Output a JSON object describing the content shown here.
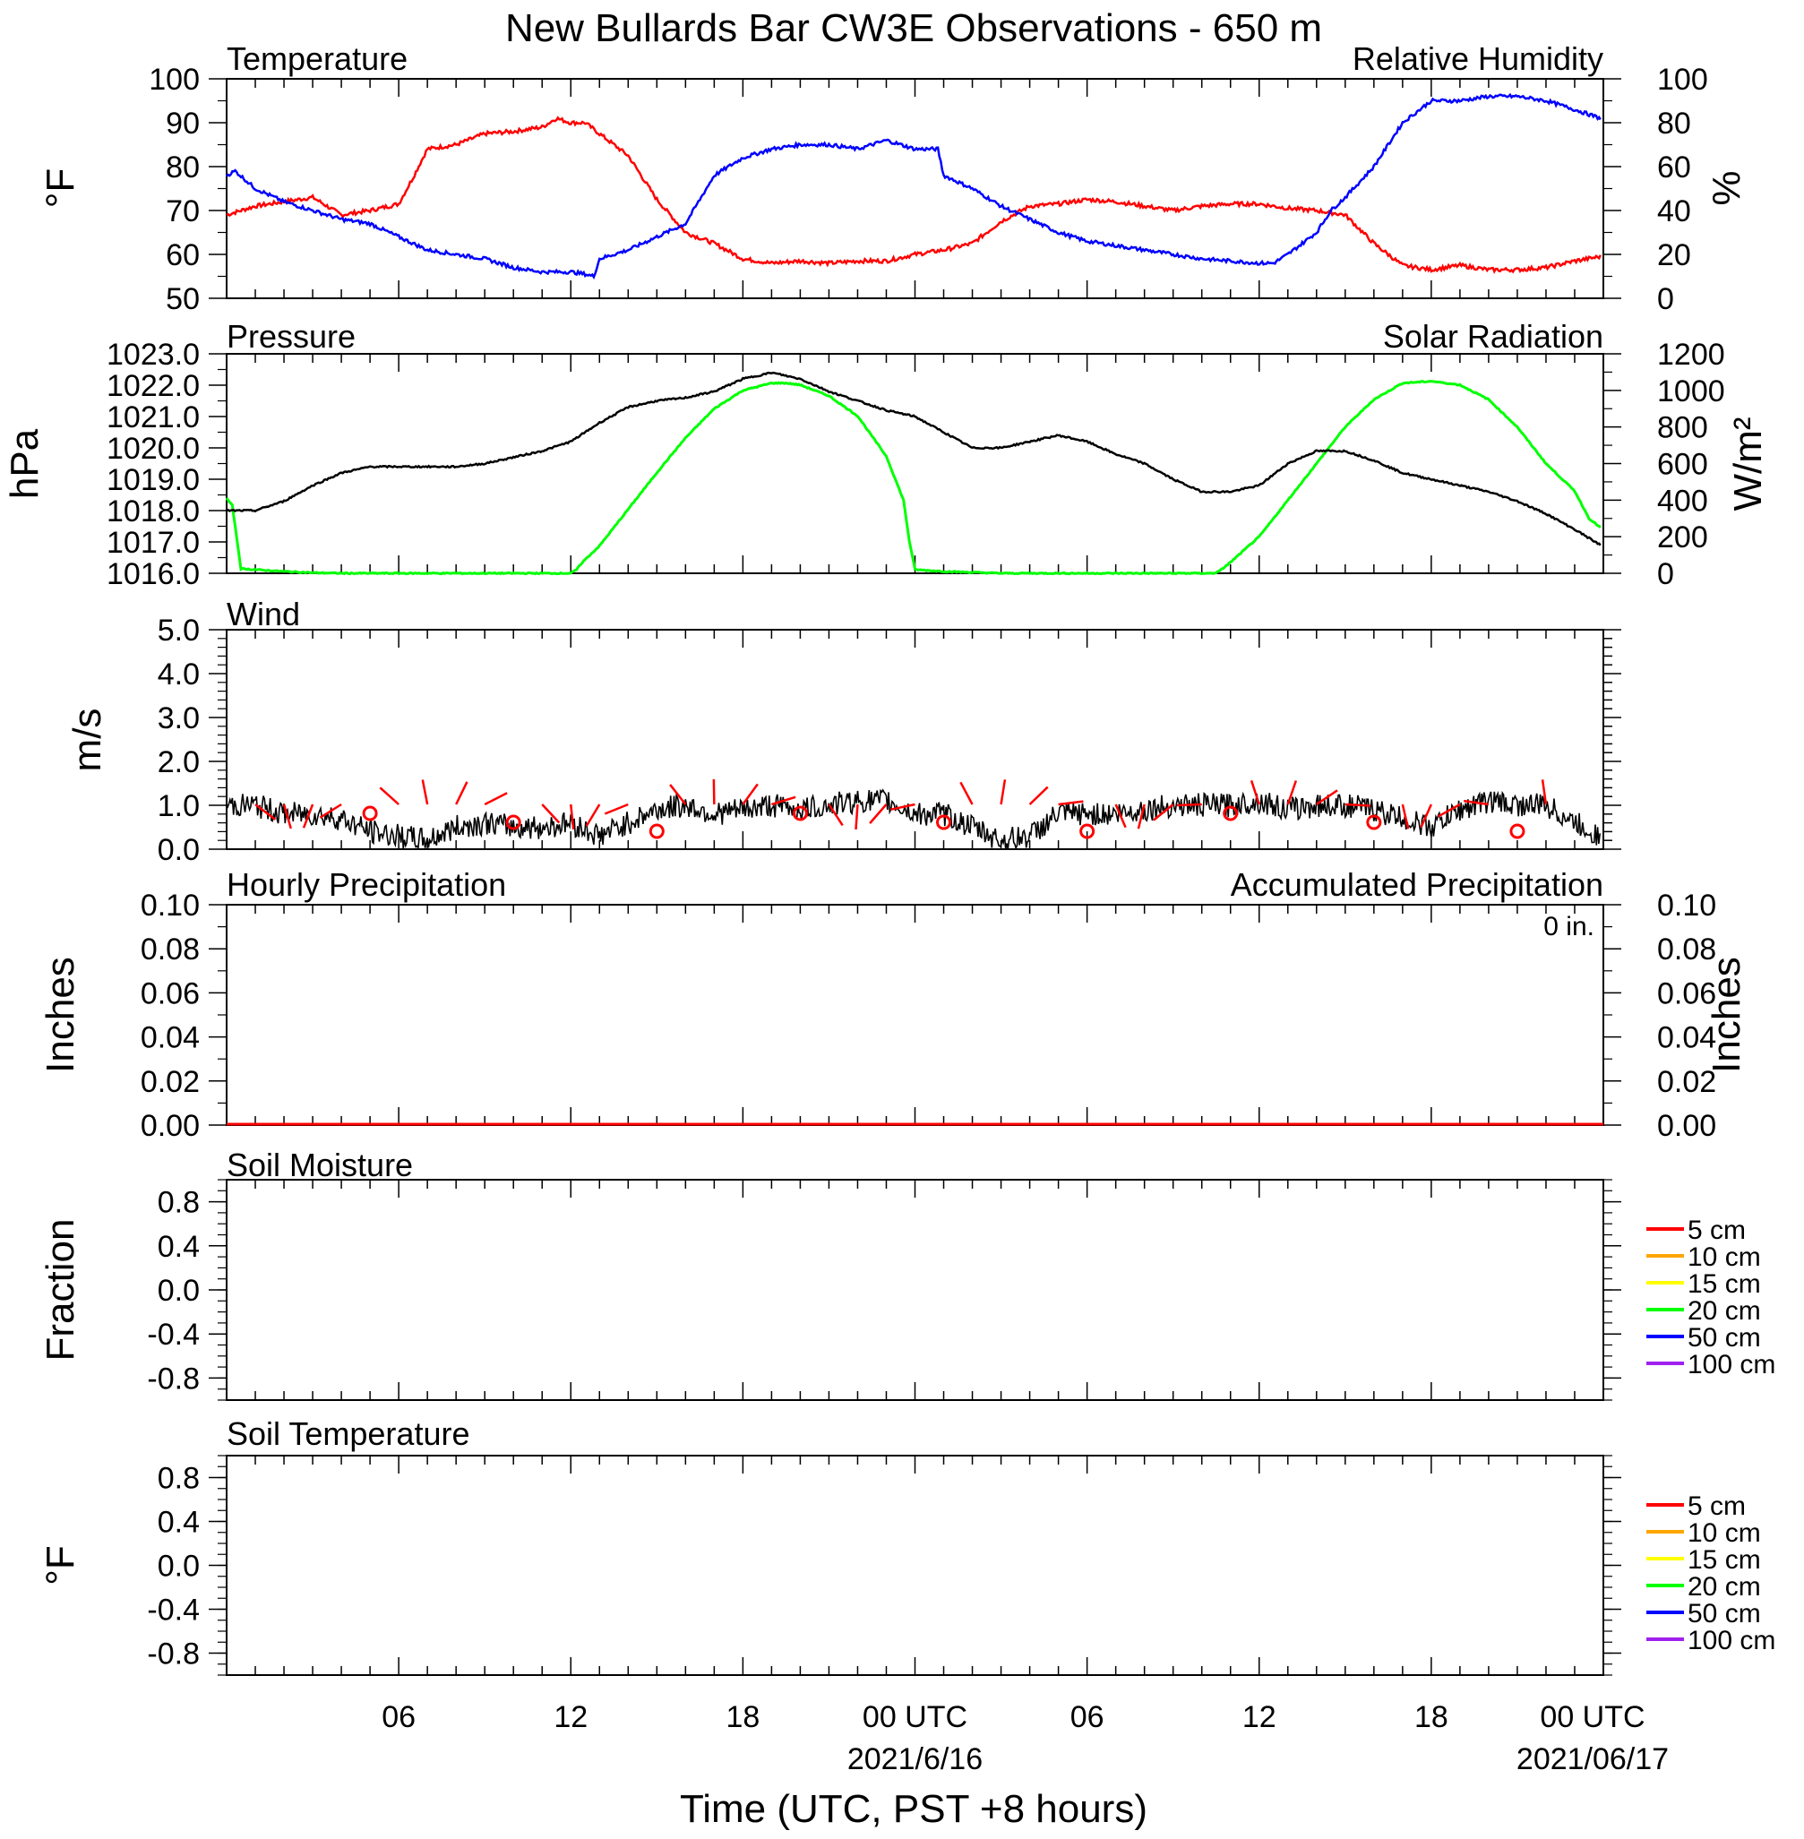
{
  "title": "New Bullards Bar CW3E Observations - 650 m",
  "x_axis": {
    "label": "Time (UTC, PST +8 hours)",
    "tick_labels": [
      "06",
      "12",
      "18",
      "00 UTC",
      "06",
      "12",
      "18",
      "00 UTC"
    ],
    "date_labels": [
      "2021/6/16",
      "2021/06/17"
    ],
    "range_hours": [
      0,
      48
    ]
  },
  "colors": {
    "temperature": "#0000ff",
    "humidity": "#ff0000",
    "pressure": "#000000",
    "solar": "#00ff00",
    "wind": "#000000",
    "wind_barb": "#ff0000",
    "hourly_precip": "#0000ff",
    "accum_precip": "#ff0000"
  },
  "panels": {
    "temp_rh": {
      "left_title": "Temperature",
      "right_title": "Relative Humidity",
      "left_unit": "°F",
      "right_unit": "%",
      "left_ticks": [
        "100",
        "90",
        "80",
        "70",
        "60",
        "50"
      ],
      "right_ticks": [
        "100",
        "80",
        "60",
        "40",
        "20",
        "0"
      ]
    },
    "pressure_solar": {
      "left_title": "Pressure",
      "right_title": "Solar Radiation",
      "left_unit": "hPa",
      "right_unit": "W/m²",
      "left_ticks": [
        "1023.0",
        "1022.0",
        "1021.0",
        "1020.0",
        "1019.0",
        "1018.0",
        "1017.0",
        "1016.0"
      ],
      "right_ticks": [
        "1200",
        "1000",
        "800",
        "600",
        "400",
        "200",
        "0"
      ]
    },
    "wind": {
      "title": "Wind",
      "unit": "m/s",
      "ticks": [
        "5.0",
        "4.0",
        "3.0",
        "2.0",
        "1.0",
        "0.0"
      ]
    },
    "precip": {
      "left_title": "Hourly Precipitation",
      "right_title": "Accumulated Precipitation",
      "accum_total": "0 in.",
      "left_unit": "Inches",
      "right_unit": "Inches",
      "left_ticks": [
        "0.10",
        "0.08",
        "0.06",
        "0.04",
        "0.02",
        "0.00"
      ],
      "right_ticks": [
        "0.10",
        "0.08",
        "0.06",
        "0.04",
        "0.02",
        "0.00"
      ]
    },
    "soil_moisture": {
      "title": "Soil Moisture",
      "unit": "Fraction",
      "ticks": [
        "0.8",
        "0.4",
        "0.0",
        "-0.4",
        "-0.8"
      ],
      "legend": [
        "5 cm",
        "10 cm",
        "15 cm",
        "20 cm",
        "50 cm",
        "100 cm"
      ]
    },
    "soil_temp": {
      "title": "Soil Temperature",
      "unit": "°F",
      "ticks": [
        "0.8",
        "0.4",
        "0.0",
        "-0.4",
        "-0.8"
      ],
      "legend": [
        "5 cm",
        "10 cm",
        "15 cm",
        "20 cm",
        "50 cm",
        "100 cm"
      ]
    }
  },
  "legend_colors": [
    "#ff0000",
    "#ffa500",
    "#ffff00",
    "#00ff00",
    "#0000ff",
    "#a020f0"
  ],
  "chart_data": [
    {
      "type": "line",
      "series": [
        {
          "name": "Temperature",
          "unit": "°F",
          "x": [
            0,
            0.3,
            1,
            2,
            3,
            4,
            5,
            6,
            7,
            8,
            9,
            10,
            11,
            12,
            12.5,
            12.8,
            13,
            14,
            15,
            16,
            17,
            18,
            19,
            20,
            21,
            22,
            23,
            24,
            24.8,
            25,
            26,
            27,
            28,
            29,
            30,
            31,
            32,
            33,
            34,
            35,
            36,
            36.5,
            37,
            38,
            38.5,
            39,
            40,
            41,
            42,
            43,
            44,
            45,
            46,
            47,
            47.9
          ],
          "y": [
            78,
            79,
            75,
            72,
            70,
            68,
            67,
            64,
            61,
            60,
            59,
            57,
            56,
            56,
            55.5,
            55,
            59,
            61,
            64,
            67,
            78,
            82,
            84,
            85,
            85,
            84,
            86,
            84,
            84,
            78,
            75,
            71,
            68,
            65,
            63,
            62,
            61,
            60,
            59,
            58.5,
            58,
            58,
            60,
            65,
            70,
            73,
            80,
            90,
            95,
            95,
            96,
            96,
            95,
            93,
            91
          ]
        },
        {
          "name": "Relative Humidity",
          "unit": "%",
          "x": [
            0,
            1,
            2,
            3,
            4,
            5,
            6,
            6.5,
            7,
            8,
            9,
            10,
            11,
            11.5,
            12,
            12.5,
            13,
            14,
            15,
            16,
            17,
            18,
            19,
            20,
            21,
            22,
            23,
            24,
            25,
            26,
            27,
            28,
            29,
            30,
            31,
            32,
            33,
            34,
            35,
            36,
            37,
            38,
            39,
            40,
            41,
            42,
            43,
            44,
            45,
            46,
            47,
            47.9
          ],
          "y": [
            38,
            42,
            44,
            46,
            38,
            40,
            43,
            55,
            68,
            70,
            75,
            76,
            78,
            82,
            80,
            80,
            75,
            65,
            45,
            30,
            25,
            18,
            16,
            17,
            16,
            17,
            17,
            20,
            22,
            25,
            35,
            42,
            43,
            45,
            44,
            42,
            40,
            42,
            43,
            43,
            41,
            40,
            38,
            25,
            15,
            13,
            15,
            13,
            13,
            14,
            17,
            19
          ]
        }
      ]
    },
    {
      "type": "line",
      "series": [
        {
          "name": "Pressure",
          "unit": "hPa",
          "x": [
            0,
            1,
            2,
            3,
            4,
            5,
            6,
            7,
            8,
            9,
            10,
            11,
            12,
            13,
            14,
            15,
            16,
            17,
            18,
            19,
            20,
            21,
            22,
            23,
            24,
            25,
            26,
            27,
            28,
            29,
            30,
            31,
            32,
            33,
            34,
            35,
            36,
            37,
            38,
            39,
            40,
            41,
            42,
            43,
            44,
            45,
            46,
            47,
            47.9
          ],
          "y": [
            1018.0,
            1018.0,
            1018.3,
            1018.8,
            1019.2,
            1019.4,
            1019.4,
            1019.4,
            1019.4,
            1019.5,
            1019.7,
            1019.9,
            1020.2,
            1020.8,
            1021.3,
            1021.5,
            1021.6,
            1021.8,
            1022.2,
            1022.4,
            1022.2,
            1021.8,
            1021.5,
            1021.2,
            1021.0,
            1020.5,
            1020.0,
            1020.0,
            1020.2,
            1020.4,
            1020.2,
            1019.8,
            1019.5,
            1019.0,
            1018.6,
            1018.6,
            1018.8,
            1019.5,
            1019.9,
            1019.9,
            1019.6,
            1019.2,
            1019.0,
            1018.8,
            1018.6,
            1018.3,
            1017.9,
            1017.4,
            1016.9
          ]
        },
        {
          "name": "Solar Radiation",
          "unit": "W/m²",
          "x": [
            0,
            0.2,
            0.5,
            1,
            2,
            3,
            4,
            5,
            6,
            7,
            8,
            9,
            10,
            11,
            12,
            12.2,
            12.4,
            13,
            14,
            15,
            16,
            17,
            18,
            19,
            19.5,
            20,
            21,
            22,
            23,
            23.6,
            23.8,
            24,
            25,
            26,
            27,
            28,
            29,
            30,
            31,
            32,
            33,
            34,
            34.4,
            34.6,
            35,
            36,
            37,
            38,
            39,
            40,
            41,
            42,
            43,
            44,
            45,
            46,
            47,
            47.5,
            47.9
          ],
          "y": [
            410,
            370,
            25,
            20,
            10,
            3,
            0,
            0,
            0,
            0,
            0,
            0,
            0,
            0,
            0,
            20,
            60,
            150,
            350,
            550,
            740,
            900,
            1000,
            1040,
            1040,
            1030,
            970,
            860,
            640,
            400,
            180,
            20,
            10,
            5,
            0,
            0,
            0,
            0,
            0,
            0,
            0,
            0,
            0,
            10,
            60,
            200,
            400,
            600,
            800,
            950,
            1040,
            1050,
            1030,
            950,
            800,
            600,
            450,
            300,
            250
          ]
        }
      ]
    },
    {
      "type": "line",
      "series": [
        {
          "name": "Wind",
          "unit": "m/s",
          "x": [
            0,
            1,
            2,
            3,
            4,
            5,
            6,
            7,
            8,
            9,
            10,
            11,
            12,
            13,
            14,
            15,
            16,
            17,
            18,
            19,
            20,
            21,
            22,
            23,
            24,
            25,
            26,
            27,
            28,
            29,
            30,
            31,
            32,
            33,
            34,
            35,
            36,
            37,
            38,
            39,
            40,
            41,
            42,
            43,
            44,
            45,
            46,
            47,
            47.9
          ],
          "y": [
            1.0,
            1.0,
            0.8,
            0.8,
            0.7,
            0.4,
            0.3,
            0.2,
            0.5,
            0.6,
            0.5,
            0.5,
            0.6,
            0.3,
            0.6,
            0.9,
            1.0,
            0.8,
            0.9,
            1.0,
            0.9,
            1.0,
            1.1,
            1.1,
            0.8,
            0.8,
            0.5,
            0.2,
            0.3,
            0.8,
            0.8,
            0.8,
            0.9,
            1.0,
            1.0,
            1.0,
            1.1,
            0.9,
            1.0,
            1.0,
            0.9,
            0.7,
            0.5,
            0.9,
            1.1,
            1.0,
            1.0,
            0.6,
            0.3
          ]
        }
      ]
    },
    {
      "type": "line",
      "series": [
        {
          "name": "Hourly Precipitation",
          "unit": "in",
          "x": [
            0,
            48
          ],
          "y": [
            0,
            0
          ]
        },
        {
          "name": "Accumulated Precipitation",
          "unit": "in",
          "x": [
            0,
            48
          ],
          "y": [
            0,
            0
          ]
        }
      ]
    },
    {
      "type": "line",
      "series": [],
      "legend": [
        "5 cm",
        "10 cm",
        "15 cm",
        "20 cm",
        "50 cm",
        "100 cm"
      ]
    },
    {
      "type": "line",
      "series": [],
      "legend": [
        "5 cm",
        "10 cm",
        "15 cm",
        "20 cm",
        "50 cm",
        "100 cm"
      ]
    }
  ]
}
